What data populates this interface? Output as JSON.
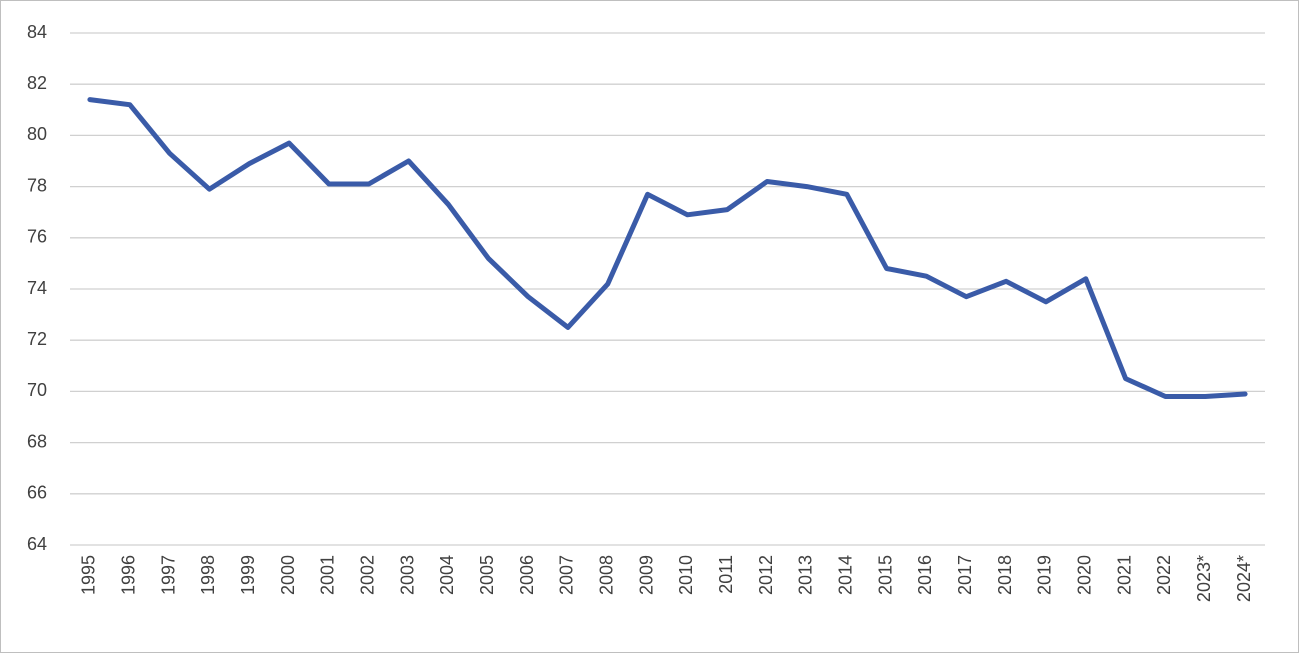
{
  "chart_data": {
    "type": "line",
    "categories": [
      "1995",
      "1996",
      "1997",
      "1998",
      "1999",
      "2000",
      "2001",
      "2002",
      "2003",
      "2004",
      "2005",
      "2006",
      "2007",
      "2008",
      "2009",
      "2010",
      "2011",
      "2012",
      "2013",
      "2014",
      "2015",
      "2016",
      "2017",
      "2018",
      "2019",
      "2020",
      "2021",
      "2022",
      "2023*",
      "2024*"
    ],
    "values": [
      81.4,
      81.2,
      79.3,
      77.9,
      78.9,
      79.7,
      78.1,
      78.1,
      79.0,
      77.3,
      75.2,
      73.7,
      72.5,
      74.2,
      77.7,
      76.9,
      77.1,
      78.2,
      78.0,
      77.7,
      74.8,
      74.5,
      73.7,
      74.3,
      73.5,
      74.4,
      70.5,
      69.8,
      69.8,
      69.9
    ],
    "color": "#3a5ba8",
    "ylim": [
      64,
      84
    ],
    "yticks": [
      64,
      66,
      68,
      70,
      72,
      74,
      76,
      78,
      80,
      82,
      84
    ],
    "grid": true
  }
}
